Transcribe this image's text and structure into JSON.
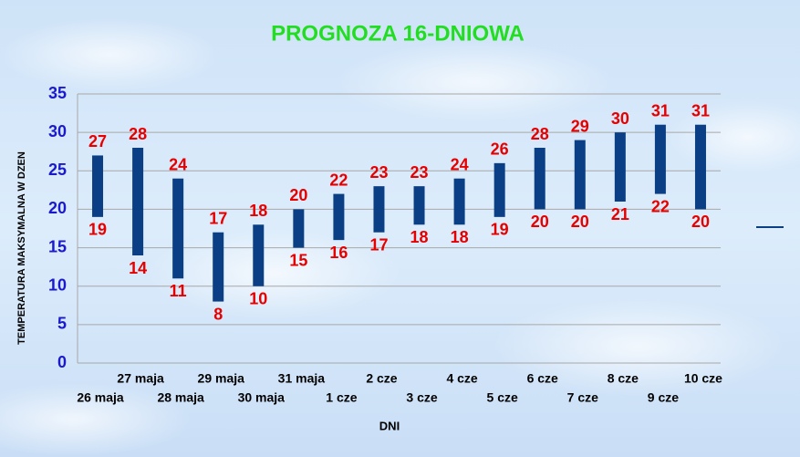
{
  "chart_data": {
    "type": "range_bar",
    "title": "PROGNOZA 16-DNIOWA",
    "x_label": "DNI",
    "y_label": "TEMPERATURA MAKSYMALNA W DZEN",
    "categories": [
      "26 maja",
      "27 maja",
      "28 maja",
      "29 maja",
      "30 maja",
      "31 maja",
      "1 cze",
      "2 cze",
      "3 cze",
      "4 cze",
      "5 cze",
      "6 cze",
      "7 cze",
      "8 cze",
      "9 cze",
      "10 cze"
    ],
    "low": [
      19,
      14,
      11,
      8,
      10,
      15,
      16,
      17,
      18,
      18,
      19,
      20,
      20,
      21,
      22,
      20
    ],
    "high": [
      27,
      28,
      24,
      17,
      18,
      20,
      22,
      23,
      23,
      24,
      26,
      28,
      29,
      30,
      31,
      31
    ],
    "color": "#0a3f85",
    "label_color": "#e60000",
    "ylim": [
      0,
      35
    ],
    "yticks": [
      0,
      5,
      10,
      15,
      20,
      25,
      30,
      35
    ],
    "grid": true
  }
}
